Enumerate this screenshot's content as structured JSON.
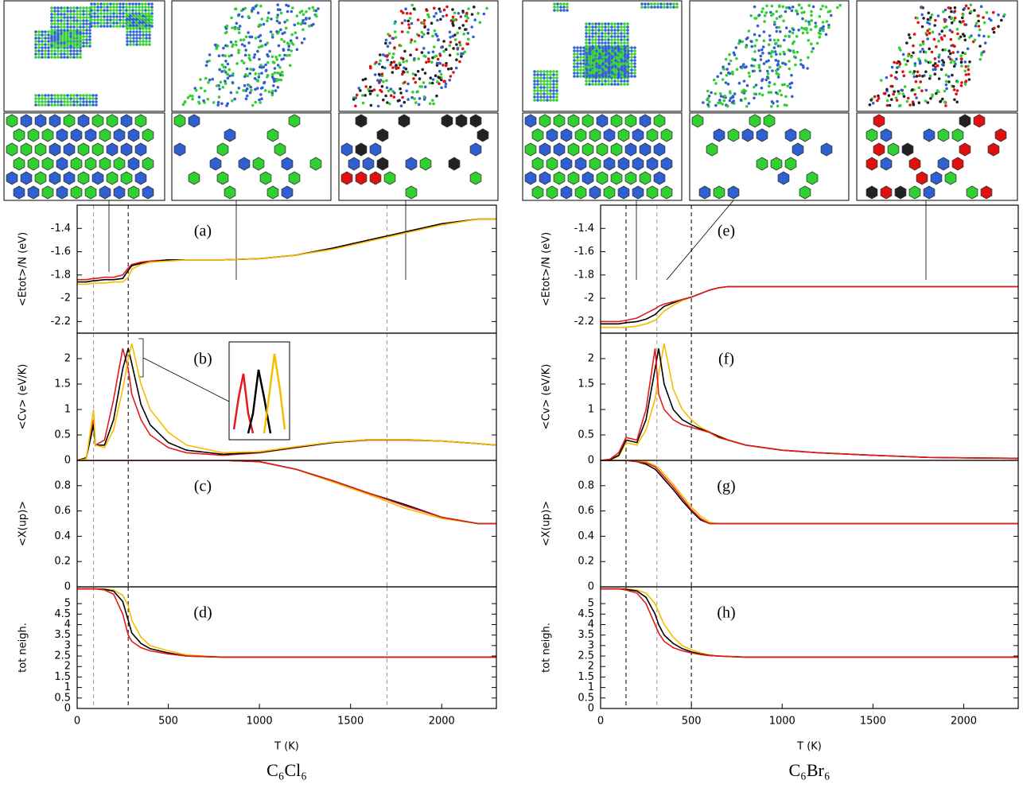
{
  "chart_data": [
    {
      "type": "line",
      "label": "(a)",
      "ylabel": "<Etot>/N (eV)",
      "x": [
        0,
        50,
        90,
        100,
        150,
        200,
        250,
        280,
        300,
        350,
        400,
        500,
        600,
        800,
        1000,
        1200,
        1400,
        1600,
        1800,
        2000,
        2200,
        2300
      ],
      "series": [
        {
          "color": "#e41a1c",
          "values": [
            -1.84,
            -1.84,
            -1.83,
            -1.83,
            -1.82,
            -1.82,
            -1.8,
            -1.74,
            -1.71,
            -1.69,
            -1.68,
            -1.67,
            -1.67,
            -1.67,
            -1.66,
            -1.63,
            -1.57,
            -1.5,
            -1.43,
            -1.36,
            -1.32,
            -1.32
          ]
        },
        {
          "color": "#000000",
          "values": [
            -1.86,
            -1.86,
            -1.85,
            -1.85,
            -1.84,
            -1.84,
            -1.83,
            -1.76,
            -1.72,
            -1.7,
            -1.69,
            -1.67,
            -1.67,
            -1.67,
            -1.66,
            -1.63,
            -1.57,
            -1.5,
            -1.43,
            -1.36,
            -1.32,
            -1.32
          ]
        },
        {
          "color": "#f5bd00",
          "values": [
            -1.88,
            -1.88,
            -1.87,
            -1.87,
            -1.87,
            -1.86,
            -1.86,
            -1.82,
            -1.75,
            -1.71,
            -1.69,
            -1.68,
            -1.67,
            -1.67,
            -1.66,
            -1.63,
            -1.58,
            -1.51,
            -1.44,
            -1.37,
            -1.32,
            -1.32
          ]
        }
      ],
      "xlim": [
        0,
        2300
      ],
      "ylim": [
        -2.3,
        -1.2
      ],
      "yticks": [
        -2.2,
        -2,
        -1.8,
        -1.6,
        -1.4
      ],
      "vlines": [
        {
          "value": 90,
          "color": "#999999"
        },
        {
          "value": 280,
          "color": "#000000"
        },
        {
          "value": 1700,
          "color": "#999999"
        }
      ]
    },
    {
      "type": "line",
      "label": "(b)",
      "ylabel": "<Cv> (eV/K)",
      "x": [
        0,
        50,
        90,
        100,
        150,
        200,
        250,
        280,
        300,
        350,
        400,
        500,
        600,
        800,
        1000,
        1200,
        1400,
        1600,
        1800,
        2000,
        2200,
        2300
      ],
      "series": [
        {
          "color": "#e41a1c",
          "values": [
            0,
            0.05,
            0.8,
            0.3,
            0.4,
            1.2,
            2.2,
            1.8,
            1.3,
            0.8,
            0.5,
            0.25,
            0.15,
            0.1,
            0.15,
            0.25,
            0.35,
            0.4,
            0.4,
            0.38,
            0.33,
            0.3
          ]
        },
        {
          "color": "#000000",
          "values": [
            0,
            0.05,
            0.7,
            0.3,
            0.3,
            0.8,
            1.8,
            2.2,
            1.9,
            1.1,
            0.7,
            0.35,
            0.2,
            0.12,
            0.16,
            0.26,
            0.35,
            0.41,
            0.41,
            0.38,
            0.33,
            0.3
          ]
        },
        {
          "color": "#f5bd00",
          "values": [
            0,
            0.03,
            1.0,
            0.3,
            0.25,
            0.6,
            1.4,
            2.0,
            2.3,
            1.5,
            1.0,
            0.55,
            0.3,
            0.15,
            0.17,
            0.27,
            0.36,
            0.41,
            0.41,
            0.38,
            0.33,
            0.3
          ]
        }
      ],
      "xlim": [
        0,
        2300
      ],
      "ylim": [
        0,
        2.5
      ],
      "yticks": [
        0,
        0.5,
        1,
        1.5,
        2
      ],
      "vlines": [
        {
          "value": 90,
          "color": "#999999"
        },
        {
          "value": 280,
          "color": "#000000"
        },
        {
          "value": 1700,
          "color": "#999999"
        }
      ]
    },
    {
      "type": "line",
      "label": "(c)",
      "ylabel": "<X(up)>",
      "x": [
        0,
        50,
        90,
        100,
        150,
        200,
        250,
        280,
        300,
        350,
        400,
        500,
        600,
        800,
        1000,
        1200,
        1400,
        1600,
        1800,
        2000,
        2200,
        2300
      ],
      "series": [
        {
          "color": "#f5bd00",
          "values": [
            1,
            1,
            1,
            1,
            1,
            1,
            1,
            1,
            1,
            1,
            1,
            1,
            1,
            1,
            0.99,
            0.93,
            0.83,
            0.73,
            0.62,
            0.54,
            0.5,
            0.5
          ]
        },
        {
          "color": "#000000",
          "values": [
            1,
            1,
            1,
            1,
            1,
            1,
            1,
            1,
            1,
            1,
            1,
            1,
            1,
            1,
            0.99,
            0.93,
            0.84,
            0.74,
            0.65,
            0.55,
            0.5,
            0.5
          ]
        },
        {
          "color": "#e41a1c",
          "values": [
            1,
            1,
            1,
            1,
            1,
            1,
            1,
            1,
            1,
            1,
            1,
            1,
            1,
            1,
            0.99,
            0.93,
            0.84,
            0.74,
            0.64,
            0.55,
            0.5,
            0.5
          ]
        }
      ],
      "xlim": [
        0,
        2300
      ],
      "ylim": [
        0,
        1
      ],
      "yticks": [
        0,
        0.2,
        0.4,
        0.6,
        0.8
      ],
      "vlines": [
        {
          "value": 90,
          "color": "#999999"
        },
        {
          "value": 280,
          "color": "#000000"
        },
        {
          "value": 1700,
          "color": "#999999"
        }
      ]
    },
    {
      "type": "line",
      "label": "(d)",
      "ylabel": "tot neigh.",
      "xlabel": "T (K)",
      "caption": "C₆Cl₆",
      "x": [
        0,
        50,
        90,
        100,
        150,
        200,
        250,
        280,
        300,
        350,
        400,
        500,
        600,
        800,
        1000,
        1200,
        1400,
        1600,
        1800,
        2000,
        2200,
        2300
      ],
      "series": [
        {
          "color": "#f5bd00",
          "values": [
            5.7,
            5.7,
            5.7,
            5.7,
            5.7,
            5.65,
            5.4,
            4.9,
            4.2,
            3.4,
            3.0,
            2.75,
            2.55,
            2.45,
            2.45,
            2.45,
            2.45,
            2.45,
            2.45,
            2.45,
            2.45,
            2.45
          ]
        },
        {
          "color": "#000000",
          "values": [
            5.7,
            5.7,
            5.7,
            5.7,
            5.68,
            5.6,
            5.1,
            4.2,
            3.6,
            3.1,
            2.85,
            2.65,
            2.5,
            2.45,
            2.45,
            2.45,
            2.45,
            2.45,
            2.45,
            2.45,
            2.45,
            2.45
          ]
        },
        {
          "color": "#e41a1c",
          "values": [
            5.7,
            5.7,
            5.7,
            5.7,
            5.65,
            5.45,
            4.5,
            3.5,
            3.2,
            2.9,
            2.75,
            2.6,
            2.5,
            2.45,
            2.45,
            2.45,
            2.45,
            2.45,
            2.45,
            2.45,
            2.45,
            2.45
          ]
        }
      ],
      "xlim": [
        0,
        2300
      ],
      "ylim": [
        0,
        5.8
      ],
      "yticks": [
        0,
        0.5,
        1,
        1.5,
        2,
        2.5,
        3,
        3.5,
        4,
        4.5,
        5
      ],
      "xticks": [
        0,
        500,
        1000,
        1500,
        2000
      ],
      "vlines": [
        {
          "value": 90,
          "color": "#999999"
        },
        {
          "value": 280,
          "color": "#000000"
        },
        {
          "value": 1700,
          "color": "#999999"
        }
      ]
    },
    {
      "type": "line",
      "label": "(e)",
      "ylabel": "<Etot>/N (eV)",
      "x": [
        0,
        50,
        100,
        140,
        200,
        250,
        300,
        320,
        350,
        400,
        450,
        500,
        550,
        600,
        650,
        700,
        800,
        1000,
        1200,
        1500,
        1800,
        2000,
        2300
      ],
      "series": [
        {
          "color": "#f5bd00",
          "values": [
            -2.25,
            -2.25,
            -2.25,
            -2.25,
            -2.24,
            -2.22,
            -2.19,
            -2.16,
            -2.11,
            -2.06,
            -2.02,
            -1.99,
            -1.96,
            -1.93,
            -1.91,
            -1.9,
            -1.9,
            -1.9,
            -1.9,
            -1.9,
            -1.9,
            -1.9,
            -1.9
          ]
        },
        {
          "color": "#000000",
          "values": [
            -2.22,
            -2.22,
            -2.22,
            -2.21,
            -2.2,
            -2.18,
            -2.14,
            -2.11,
            -2.07,
            -2.04,
            -2.01,
            -1.99,
            -1.96,
            -1.93,
            -1.91,
            -1.9,
            -1.9,
            -1.9,
            -1.9,
            -1.9,
            -1.9,
            -1.9,
            -1.9
          ]
        },
        {
          "color": "#e41a1c",
          "values": [
            -2.2,
            -2.2,
            -2.2,
            -2.19,
            -2.17,
            -2.13,
            -2.09,
            -2.07,
            -2.05,
            -2.03,
            -2.01,
            -1.99,
            -1.96,
            -1.93,
            -1.91,
            -1.9,
            -1.9,
            -1.9,
            -1.9,
            -1.9,
            -1.9,
            -1.9,
            -1.9
          ]
        }
      ],
      "xlim": [
        0,
        2300
      ],
      "ylim": [
        -2.3,
        -1.2
      ],
      "yticks": [
        -2.2,
        -2,
        -1.8,
        -1.6,
        -1.4
      ],
      "vlines": [
        {
          "value": 140,
          "color": "#000000"
        },
        {
          "value": 310,
          "color": "#999999"
        },
        {
          "value": 500,
          "color": "#000000"
        }
      ]
    },
    {
      "type": "line",
      "label": "(f)",
      "ylabel": "<Cv> (eV/K)",
      "x": [
        0,
        50,
        100,
        140,
        200,
        250,
        300,
        320,
        350,
        400,
        450,
        500,
        550,
        600,
        650,
        700,
        800,
        1000,
        1200,
        1500,
        1800,
        2000,
        2300
      ],
      "series": [
        {
          "color": "#f5bd00",
          "values": [
            0,
            0.01,
            0.08,
            0.35,
            0.3,
            0.6,
            1.2,
            1.7,
            2.3,
            1.4,
            1.0,
            0.8,
            0.65,
            0.56,
            0.48,
            0.41,
            0.3,
            0.2,
            0.15,
            0.1,
            0.06,
            0.05,
            0.04
          ]
        },
        {
          "color": "#000000",
          "values": [
            0,
            0.01,
            0.1,
            0.4,
            0.35,
            0.8,
            1.8,
            2.2,
            1.5,
            1.0,
            0.8,
            0.7,
            0.62,
            0.55,
            0.47,
            0.4,
            0.3,
            0.2,
            0.15,
            0.1,
            0.06,
            0.05,
            0.04
          ]
        },
        {
          "color": "#e41a1c",
          "values": [
            0,
            0.02,
            0.15,
            0.45,
            0.4,
            1.0,
            2.2,
            1.3,
            1.0,
            0.8,
            0.7,
            0.65,
            0.6,
            0.55,
            0.45,
            0.4,
            0.3,
            0.2,
            0.15,
            0.1,
            0.06,
            0.05,
            0.04
          ]
        }
      ],
      "xlim": [
        0,
        2300
      ],
      "ylim": [
        0,
        2.5
      ],
      "yticks": [
        0,
        0.5,
        1,
        1.5,
        2
      ],
      "vlines": [
        {
          "value": 140,
          "color": "#000000"
        },
        {
          "value": 310,
          "color": "#999999"
        },
        {
          "value": 500,
          "color": "#000000"
        }
      ]
    },
    {
      "type": "line",
      "label": "(g)",
      "ylabel": "<X(up)>",
      "x": [
        0,
        50,
        100,
        140,
        200,
        250,
        300,
        320,
        350,
        400,
        450,
        500,
        550,
        600,
        650,
        700,
        800,
        1000,
        1200,
        1500,
        1800,
        2000,
        2300
      ],
      "series": [
        {
          "color": "#f5bd00",
          "values": [
            1,
            1,
            1,
            1,
            1,
            0.99,
            0.96,
            0.94,
            0.89,
            0.81,
            0.72,
            0.63,
            0.56,
            0.51,
            0.5,
            0.5,
            0.5,
            0.5,
            0.5,
            0.5,
            0.5,
            0.5,
            0.5
          ]
        },
        {
          "color": "#000000",
          "values": [
            1,
            1,
            1,
            1,
            0.99,
            0.97,
            0.93,
            0.9,
            0.85,
            0.77,
            0.68,
            0.6,
            0.53,
            0.5,
            0.5,
            0.5,
            0.5,
            0.5,
            0.5,
            0.5,
            0.5,
            0.5,
            0.5
          ]
        },
        {
          "color": "#e41a1c",
          "values": [
            1,
            1,
            1,
            1,
            0.99,
            0.98,
            0.95,
            0.92,
            0.87,
            0.79,
            0.7,
            0.61,
            0.54,
            0.5,
            0.5,
            0.5,
            0.5,
            0.5,
            0.5,
            0.5,
            0.5,
            0.5,
            0.5
          ]
        }
      ],
      "xlim": [
        0,
        2300
      ],
      "ylim": [
        0,
        1
      ],
      "yticks": [
        0,
        0.2,
        0.4,
        0.6,
        0.8
      ],
      "vlines": [
        {
          "value": 140,
          "color": "#000000"
        },
        {
          "value": 310,
          "color": "#999999"
        },
        {
          "value": 500,
          "color": "#000000"
        }
      ]
    },
    {
      "type": "line",
      "label": "(h)",
      "ylabel": "tot neigh.",
      "xlabel": "T (K)",
      "caption": "C₆Br₆",
      "x": [
        0,
        50,
        100,
        140,
        200,
        250,
        300,
        320,
        350,
        400,
        450,
        500,
        550,
        600,
        650,
        700,
        800,
        1000,
        1200,
        1500,
        1800,
        2000,
        2300
      ],
      "series": [
        {
          "color": "#f5bd00",
          "values": [
            5.7,
            5.7,
            5.7,
            5.7,
            5.65,
            5.5,
            5.0,
            4.6,
            4.0,
            3.4,
            3.0,
            2.8,
            2.65,
            2.55,
            2.5,
            2.48,
            2.45,
            2.45,
            2.45,
            2.45,
            2.45,
            2.45,
            2.45
          ]
        },
        {
          "color": "#000000",
          "values": [
            5.7,
            5.7,
            5.7,
            5.68,
            5.6,
            5.3,
            4.5,
            4.0,
            3.5,
            3.1,
            2.85,
            2.7,
            2.6,
            2.53,
            2.5,
            2.48,
            2.45,
            2.45,
            2.45,
            2.45,
            2.45,
            2.45,
            2.45
          ]
        },
        {
          "color": "#e41a1c",
          "values": [
            5.7,
            5.7,
            5.7,
            5.65,
            5.5,
            5.0,
            4.0,
            3.6,
            3.2,
            2.9,
            2.75,
            2.65,
            2.57,
            2.52,
            2.5,
            2.48,
            2.45,
            2.45,
            2.45,
            2.45,
            2.45,
            2.45,
            2.45
          ]
        }
      ],
      "xlim": [
        0,
        2300
      ],
      "ylim": [
        0,
        5.8
      ],
      "yticks": [
        0,
        0.5,
        1,
        1.5,
        2,
        2.5,
        3,
        3.5,
        4,
        4.5,
        5
      ],
      "xticks": [
        0,
        500,
        1000,
        1500,
        2000
      ],
      "vlines": [
        {
          "value": 140,
          "color": "#000000"
        },
        {
          "value": 310,
          "color": "#999999"
        },
        {
          "value": 500,
          "color": "#000000"
        }
      ]
    }
  ]
}
